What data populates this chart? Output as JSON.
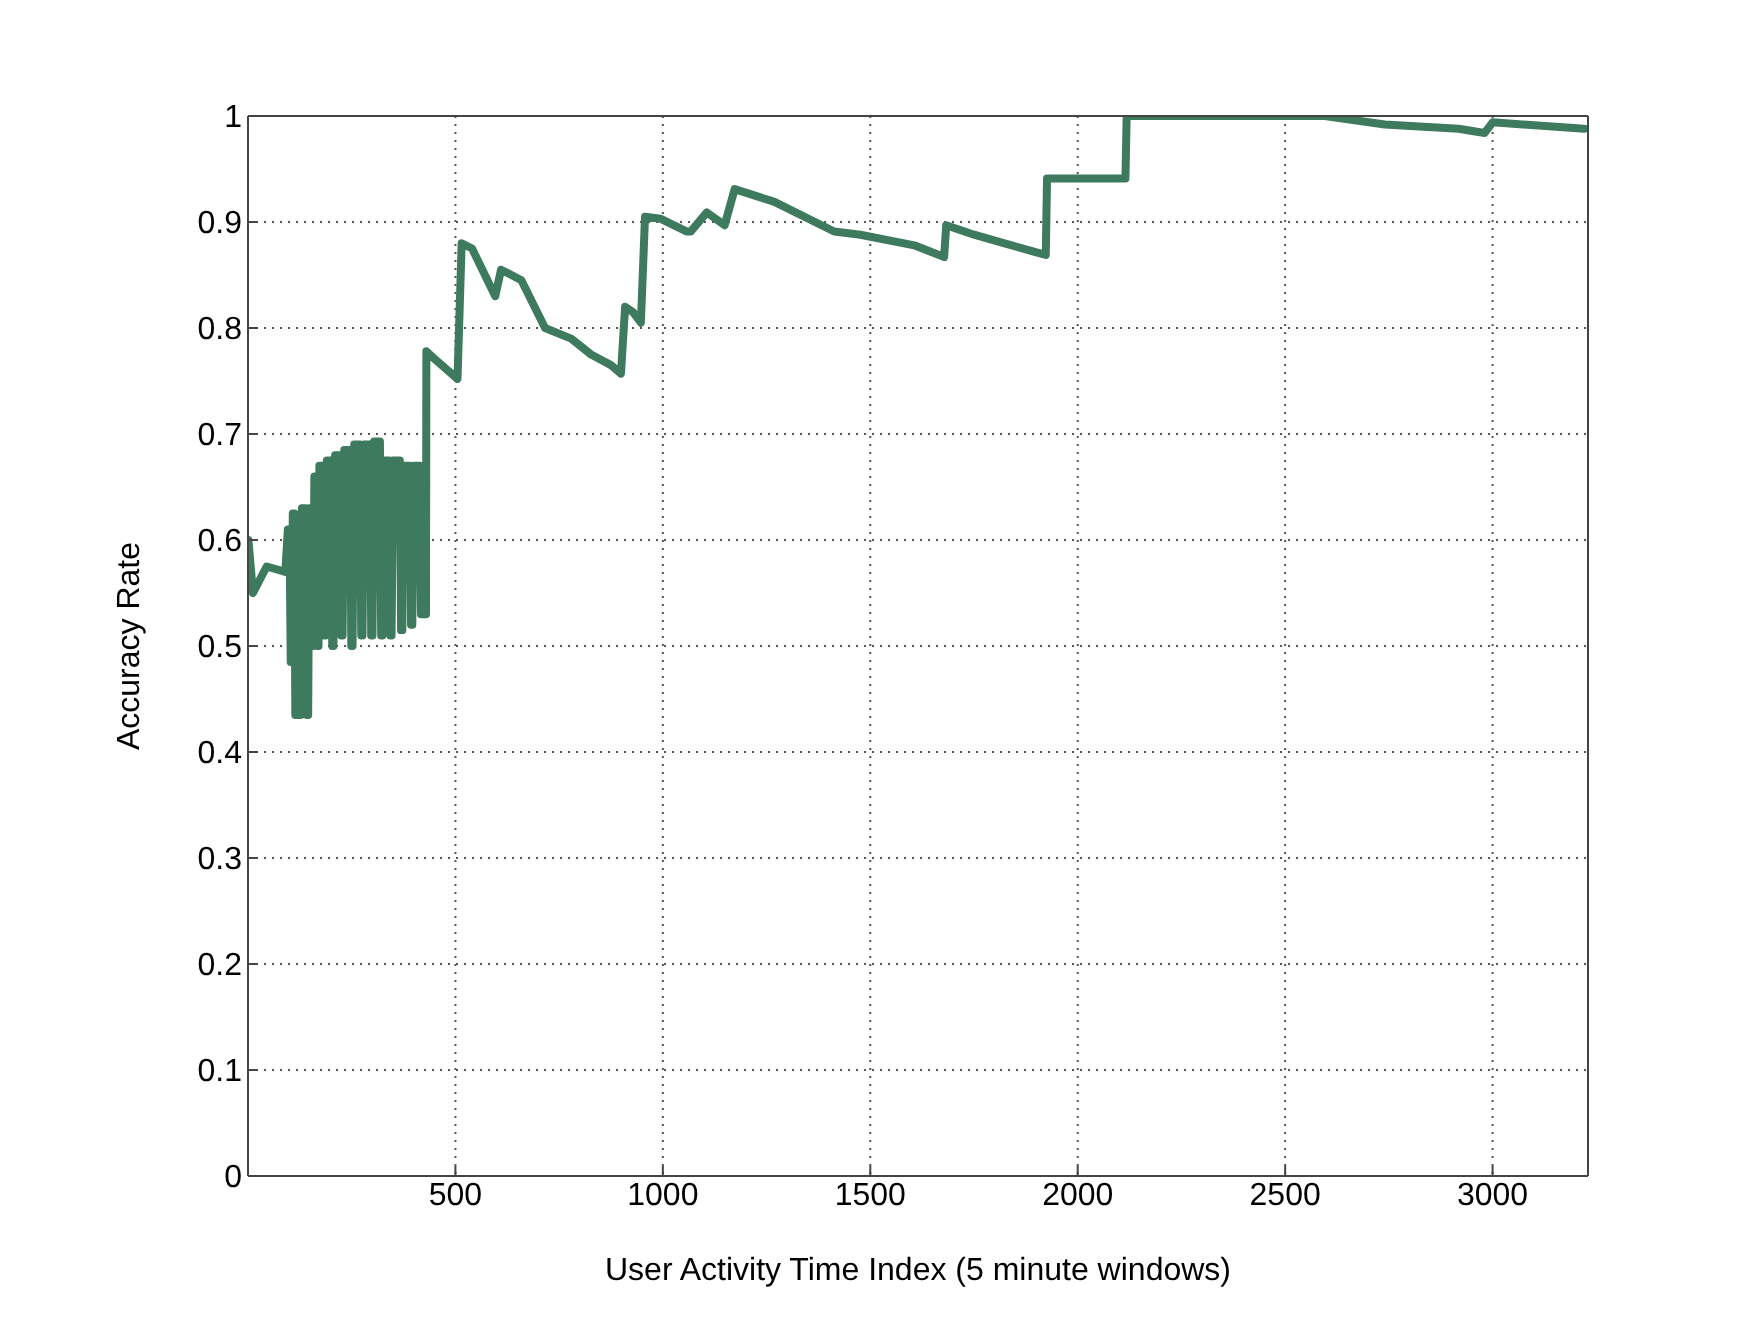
{
  "chart_data": {
    "type": "line",
    "xlabel": "User Activity Time Index (5 minute windows)",
    "ylabel": "Accuracy Rate",
    "xlim": [
      0,
      3230
    ],
    "ylim": [
      0,
      1
    ],
    "xticks": [
      500,
      1000,
      1500,
      2000,
      2500,
      3000
    ],
    "yticks": [
      0,
      0.1,
      0.2,
      0.3,
      0.4,
      0.5,
      0.6,
      0.7,
      0.8,
      0.9,
      1
    ],
    "grid": true,
    "legend": false,
    "marker": "none",
    "line_style": "solid",
    "series": [
      {
        "color": "#3d7a5e",
        "x": [
          1,
          12,
          45,
          90,
          96,
          100,
          103,
          105,
          108,
          112,
          114,
          116,
          118,
          122,
          124,
          127,
          130,
          140,
          142,
          145,
          148,
          152,
          154,
          157,
          160,
          165,
          167,
          170,
          172,
          182,
          184,
          187,
          190,
          200,
          203,
          206,
          210,
          222,
          225,
          228,
          232,
          246,
          249,
          252,
          256,
          270,
          273,
          276,
          280,
          294,
          297,
          300,
          304,
          318,
          321,
          324,
          328,
          340,
          343,
          346,
          350,
          366,
          369,
          372,
          375,
          390,
          393,
          396,
          400,
          414,
          417,
          420,
          422,
          426,
          427,
          429,
          430,
          452,
          505,
          515,
          540,
          596,
          610,
          659,
          716,
          779,
          827,
          875,
          899,
          909,
          928,
          947,
          957,
          995,
          1058,
          1067,
          1106,
          1149,
          1173,
          1269,
          1413,
          1476,
          1606,
          1678,
          1683,
          1750,
          1813,
          1894,
          1923,
          1926,
          2115,
          2118,
          2596,
          2740,
          2918,
          2981,
          3000,
          3221
        ],
        "values": [
          0.6,
          0.55,
          0.575,
          0.57,
          0.61,
          0.61,
          0.485,
          0.485,
          0.625,
          0.625,
          0.435,
          0.435,
          0.62,
          0.62,
          0.435,
          0.435,
          0.63,
          0.63,
          0.435,
          0.435,
          0.63,
          0.63,
          0.5,
          0.5,
          0.66,
          0.66,
          0.5,
          0.5,
          0.67,
          0.67,
          0.51,
          0.51,
          0.675,
          0.675,
          0.5,
          0.5,
          0.68,
          0.68,
          0.51,
          0.51,
          0.685,
          0.685,
          0.5,
          0.5,
          0.69,
          0.69,
          0.51,
          0.51,
          0.69,
          0.69,
          0.51,
          0.51,
          0.693,
          0.693,
          0.51,
          0.51,
          0.675,
          0.675,
          0.51,
          0.51,
          0.675,
          0.675,
          0.515,
          0.515,
          0.67,
          0.67,
          0.52,
          0.52,
          0.67,
          0.67,
          0.53,
          0.53,
          0.67,
          0.67,
          0.53,
          0.53,
          0.778,
          0.77,
          0.752,
          0.88,
          0.875,
          0.83,
          0.855,
          0.845,
          0.8,
          0.79,
          0.775,
          0.765,
          0.757,
          0.82,
          0.815,
          0.805,
          0.905,
          0.903,
          0.891,
          0.891,
          0.909,
          0.897,
          0.931,
          0.919,
          0.891,
          0.888,
          0.878,
          0.867,
          0.897,
          0.888,
          0.881,
          0.872,
          0.869,
          0.941,
          0.941,
          1.0,
          1.0,
          0.992,
          0.988,
          0.984,
          0.994,
          0.988
        ]
      }
    ]
  }
}
